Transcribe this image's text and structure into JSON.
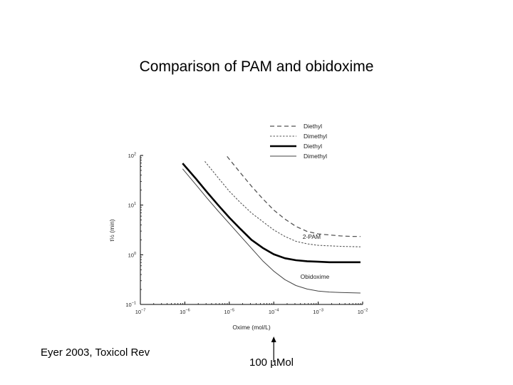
{
  "slide": {
    "title": "Comparison of PAM and obidoxime",
    "credit": "Eyer 2003, Toxicol Rev",
    "marker_label": "100 µMol"
  },
  "chart_data": {
    "type": "line",
    "xscale": "log",
    "yscale": "log",
    "xlabel": "Oxime (mol/L)",
    "ylabel": "t½ (min)",
    "xlim_exp": [
      -7,
      -2
    ],
    "ylim_exp": [
      -1,
      2
    ],
    "x_ticks": [
      {
        "base": "10",
        "exp": "−7",
        "value_exp": -7
      },
      {
        "base": "10",
        "exp": "−6",
        "value_exp": -6
      },
      {
        "base": "10",
        "exp": "−5",
        "value_exp": -5
      },
      {
        "base": "10",
        "exp": "−4",
        "value_exp": -4
      },
      {
        "base": "10",
        "exp": "−3",
        "value_exp": -3
      },
      {
        "base": "10",
        "exp": "−2",
        "value_exp": -2
      }
    ],
    "y_ticks": [
      {
        "base": "10",
        "exp": "2",
        "value_exp": 2
      },
      {
        "base": "10",
        "exp": "1",
        "value_exp": 1
      },
      {
        "base": "10",
        "exp": "0",
        "value_exp": 0
      },
      {
        "base": "10",
        "exp": "−1",
        "value_exp": -1
      }
    ],
    "legend": [
      {
        "label": "Diethyl",
        "style": "dashed"
      },
      {
        "label": "Dimethyl",
        "style": "dotted"
      },
      {
        "label": "Diethyl",
        "style": "thick"
      },
      {
        "label": "Dimethyl",
        "style": "thin"
      }
    ],
    "annotations": [
      {
        "text": "2-PAM",
        "x_exp": -3.35,
        "y_exp": 0.32
      },
      {
        "text": "Obidoxime",
        "x_exp": -3.4,
        "y_exp": -0.48
      }
    ],
    "marker": {
      "x_exp": -4
    },
    "series": [
      {
        "name": "2-PAM Diethyl",
        "style": "dashed",
        "x_exp": [
          -5.05,
          -4.75,
          -4.5,
          -4.25,
          -4.0,
          -3.75,
          -3.5,
          -3.25,
          -3.0,
          -2.75,
          -2.5,
          -2.25,
          -2.05
        ],
        "y_exp": [
          1.98,
          1.65,
          1.38,
          1.13,
          0.9,
          0.72,
          0.57,
          0.47,
          0.42,
          0.4,
          0.38,
          0.37,
          0.37
        ]
      },
      {
        "name": "2-PAM Dimethyl",
        "style": "dotted",
        "x_exp": [
          -5.55,
          -5.25,
          -5.0,
          -4.75,
          -4.5,
          -4.25,
          -4.0,
          -3.75,
          -3.5,
          -3.25,
          -3.0,
          -2.75,
          -2.5,
          -2.05
        ],
        "y_exp": [
          1.88,
          1.55,
          1.28,
          1.05,
          0.84,
          0.67,
          0.5,
          0.37,
          0.27,
          0.22,
          0.19,
          0.18,
          0.17,
          0.16
        ]
      },
      {
        "name": "Obidoxime Diethyl",
        "style": "thick",
        "x_exp": [
          -6.05,
          -5.75,
          -5.5,
          -5.25,
          -5.0,
          -4.75,
          -4.5,
          -4.25,
          -4.0,
          -3.75,
          -3.5,
          -3.25,
          -3.0,
          -2.75,
          -2.5,
          -2.05
        ],
        "y_exp": [
          1.84,
          1.53,
          1.26,
          1.0,
          0.75,
          0.52,
          0.3,
          0.14,
          0.01,
          -0.07,
          -0.11,
          -0.13,
          -0.14,
          -0.15,
          -0.15,
          -0.15
        ]
      },
      {
        "name": "Obidoxime Dimethyl",
        "style": "thin",
        "x_exp": [
          -6.05,
          -5.75,
          -5.5,
          -5.25,
          -5.0,
          -4.75,
          -4.5,
          -4.25,
          -4.0,
          -3.75,
          -3.5,
          -3.25,
          -3.0,
          -2.75,
          -2.5,
          -2.05
        ],
        "y_exp": [
          1.73,
          1.41,
          1.14,
          0.88,
          0.63,
          0.38,
          0.13,
          -0.12,
          -0.33,
          -0.5,
          -0.62,
          -0.69,
          -0.73,
          -0.75,
          -0.76,
          -0.77
        ]
      }
    ]
  }
}
